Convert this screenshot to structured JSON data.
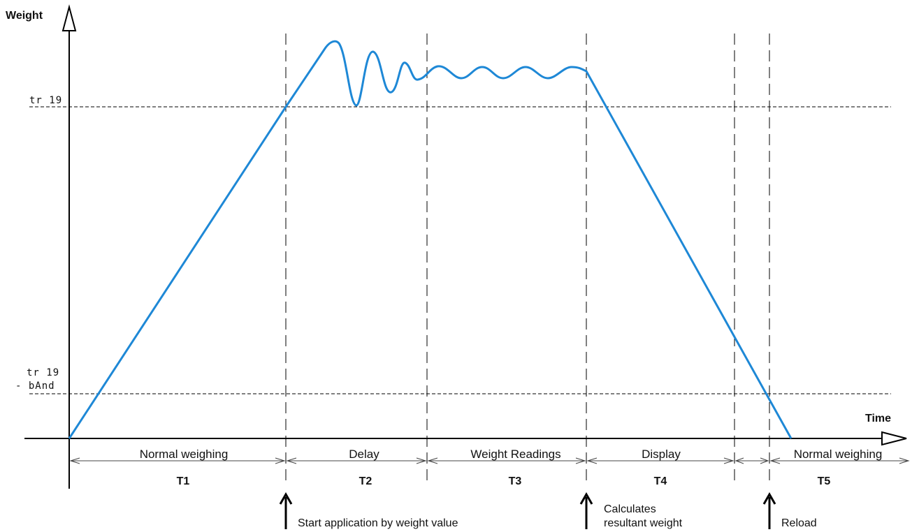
{
  "axes": {
    "y_label": "Weight",
    "x_label": "Time"
  },
  "thresholds": {
    "upper_label": "tr 19",
    "lower_label_line1": "tr 19",
    "lower_label_line2": "- bAnd"
  },
  "phases": [
    {
      "name": "Normal weighing",
      "id": "T1"
    },
    {
      "name": "Delay",
      "id": "T2"
    },
    {
      "name": "Weight Readings",
      "id": "T3"
    },
    {
      "name": "Display",
      "id": "T4"
    },
    {
      "name": "Normal weighing",
      "id": "T5"
    }
  ],
  "events": [
    {
      "text_line1": "Start application by weight value",
      "text_line2": ""
    },
    {
      "text_line1": "Calculates",
      "text_line2": "resultant weight"
    },
    {
      "text_line1": "Reload",
      "text_line2": ""
    }
  ],
  "colors": {
    "curve": "#1e88d6",
    "axis": "#000000",
    "dashed": "#000000"
  }
}
